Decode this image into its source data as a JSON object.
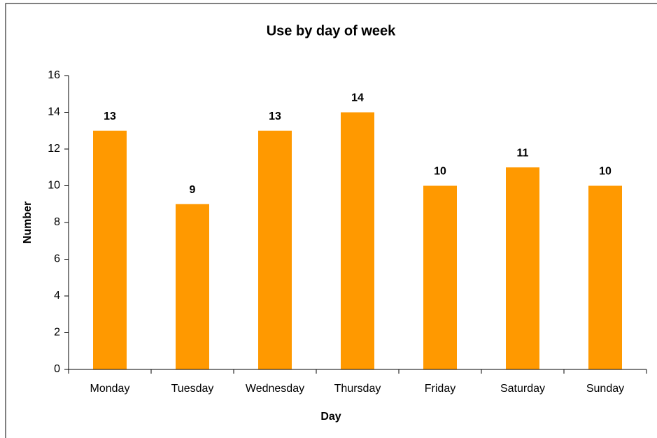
{
  "chart_data": {
    "type": "bar",
    "title": "Use by day of week",
    "x_label": "Day",
    "y_label": "Number",
    "categories": [
      "Monday",
      "Tuesday",
      "Wednesday",
      "Thursday",
      "Friday",
      "Saturday",
      "Sunday"
    ],
    "values": [
      13,
      9,
      13,
      14,
      10,
      11,
      10
    ],
    "color": "#ff9900",
    "ylim": [
      0,
      16
    ],
    "yticks": [
      0,
      2,
      4,
      6,
      8,
      10,
      12,
      14,
      16
    ],
    "grid": false
  }
}
